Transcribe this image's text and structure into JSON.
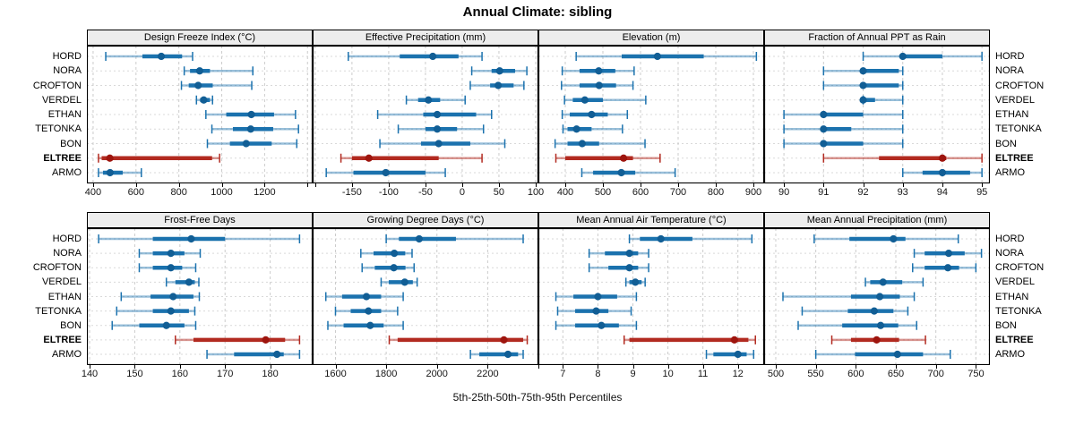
{
  "title": "Annual Climate: sibling",
  "footer": "5th-25th-50th-75th-95th Percentiles",
  "sites": [
    "HORD",
    "NORA",
    "CROFTON",
    "VERDEL",
    "ETHAN",
    "TETONKA",
    "BON",
    "ELTREE",
    "ARMO"
  ],
  "highlight_site": "ELTREE",
  "colors": {
    "normal": "#1b72ae",
    "normal_light": "rgba(27,114,174,0.45)",
    "normal_dot": "#115e95",
    "highlight": "#b22a20",
    "highlight_light": "rgba(178,42,32,0.5)",
    "highlight_dot": "#9e150e",
    "grid_vertical": "#cccccc",
    "grid_horizontal": "#d9d9d9",
    "strip_bg": "#ededed",
    "border": "#000000"
  },
  "chart_data": [
    {
      "type": "scatter",
      "style": "percentile-interval",
      "title": "Design Freeze Index (°C)",
      "xlim": [
        371,
        1424
      ],
      "ticks": [
        400,
        600,
        800,
        1000,
        1200
      ],
      "extra_ticks": [
        1400
      ],
      "percentiles": [
        "5th",
        "25th",
        "50th",
        "75th",
        "95th"
      ],
      "series": [
        {
          "site": "HORD",
          "values": [
            459,
            630,
            718,
            815,
            864
          ]
        },
        {
          "site": "NORA",
          "values": [
            825,
            852,
            897,
            945,
            1145
          ]
        },
        {
          "site": "CROFTON",
          "values": [
            812,
            846,
            890,
            958,
            1140
          ]
        },
        {
          "site": "VERDEL",
          "values": [
            882,
            899,
            916,
            945,
            957
          ]
        },
        {
          "site": "ETHAN",
          "values": [
            926,
            1021,
            1138,
            1244,
            1344
          ]
        },
        {
          "site": "TETONKA",
          "values": [
            954,
            1052,
            1135,
            1240,
            1358
          ]
        },
        {
          "site": "BON",
          "values": [
            933,
            1038,
            1114,
            1233,
            1350
          ]
        },
        {
          "site": "ELTREE",
          "values": [
            425,
            440,
            478,
            955,
            990
          ]
        },
        {
          "site": "ARMO",
          "values": [
            425,
            446,
            479,
            538,
            625
          ]
        }
      ]
    },
    {
      "type": "scatter",
      "style": "percentile-interval",
      "title": "Effective Precipitation (mm)",
      "xlim": [
        -203.5,
        103.7
      ],
      "ticks": [
        -150,
        -100,
        -50,
        0,
        50,
        100
      ],
      "extra_ticks": [
        -200
      ],
      "series": [
        {
          "site": "HORD",
          "values": [
            -155,
            -85,
            -40,
            -5,
            27
          ]
        },
        {
          "site": "NORA",
          "values": [
            13,
            40,
            51,
            72,
            88
          ]
        },
        {
          "site": "CROFTON",
          "values": [
            11,
            38,
            49,
            70,
            84
          ]
        },
        {
          "site": "VERDEL",
          "values": [
            -76,
            -60,
            -46,
            -30,
            4
          ]
        },
        {
          "site": "ETHAN",
          "values": [
            -115,
            -53,
            -34,
            19,
            40
          ]
        },
        {
          "site": "TETONKA",
          "values": [
            -87,
            -50,
            -34,
            -7,
            29
          ]
        },
        {
          "site": "BON",
          "values": [
            -112,
            -56,
            -32,
            11,
            58
          ]
        },
        {
          "site": "ELTREE",
          "values": [
            -165,
            -150,
            -127,
            -32,
            27
          ]
        },
        {
          "site": "ARMO",
          "values": [
            -185,
            -148,
            -104,
            -50,
            -23
          ]
        }
      ]
    },
    {
      "type": "scatter",
      "style": "percentile-interval",
      "title": "Elevation (m)",
      "xlim": [
        328.6,
        928.6
      ],
      "ticks": [
        400,
        500,
        600,
        700,
        800,
        900
      ],
      "extra_ticks": [],
      "series": [
        {
          "site": "HORD",
          "values": [
            429,
            550,
            645,
            768,
            908
          ]
        },
        {
          "site": "NORA",
          "values": [
            392,
            438,
            489,
            533,
            583
          ]
        },
        {
          "site": "CROFTON",
          "values": [
            390,
            438,
            490,
            535,
            580
          ]
        },
        {
          "site": "VERDEL",
          "values": [
            398,
            420,
            452,
            500,
            614
          ]
        },
        {
          "site": "ETHAN",
          "values": [
            392,
            412,
            470,
            513,
            565
          ]
        },
        {
          "site": "TETONKA",
          "values": [
            394,
            406,
            430,
            470,
            552
          ]
        },
        {
          "site": "BON",
          "values": [
            373,
            406,
            445,
            490,
            612
          ]
        },
        {
          "site": "ELTREE",
          "values": [
            375,
            400,
            555,
            580,
            652
          ]
        },
        {
          "site": "ARMO",
          "values": [
            444,
            474,
            549,
            586,
            692
          ]
        }
      ]
    },
    {
      "type": "scatter",
      "style": "percentile-interval",
      "title": "Fraction of Annual PPT as Rain",
      "xlim": [
        89.5,
        95.2
      ],
      "ticks": [
        90,
        91,
        92,
        93,
        94,
        95
      ],
      "extra_ticks": [],
      "series": [
        {
          "site": "HORD",
          "values": [
            92,
            93,
            93,
            94,
            95
          ]
        },
        {
          "site": "NORA",
          "values": [
            91,
            92,
            92,
            92.9,
            93
          ]
        },
        {
          "site": "CROFTON",
          "values": [
            91,
            92,
            92,
            92.9,
            93
          ]
        },
        {
          "site": "VERDEL",
          "values": [
            92,
            92,
            92,
            92.3,
            93
          ]
        },
        {
          "site": "ETHAN",
          "values": [
            90,
            91,
            91,
            92,
            93
          ]
        },
        {
          "site": "TETONKA",
          "values": [
            90,
            91,
            91,
            91.7,
            93
          ]
        },
        {
          "site": "BON",
          "values": [
            90,
            91,
            91,
            92,
            93
          ]
        },
        {
          "site": "ELTREE",
          "values": [
            91,
            92.4,
            94,
            94.1,
            95
          ]
        },
        {
          "site": "ARMO",
          "values": [
            93,
            93.5,
            94,
            94.7,
            95
          ]
        }
      ]
    },
    {
      "type": "scatter",
      "style": "percentile-interval",
      "title": "Frost-Free Days",
      "xlim": [
        139.4,
        189.4
      ],
      "ticks": [
        140,
        150,
        160,
        170,
        180
      ],
      "extra_ticks": [],
      "series": [
        {
          "site": "HORD",
          "values": [
            142,
            154,
            162.5,
            170,
            186.5
          ]
        },
        {
          "site": "NORA",
          "values": [
            151,
            154,
            158,
            161,
            164.5
          ]
        },
        {
          "site": "CROFTON",
          "values": [
            151,
            154,
            158,
            160.5,
            163.5
          ]
        },
        {
          "site": "VERDEL",
          "values": [
            157,
            159,
            162,
            163.3,
            164.2
          ]
        },
        {
          "site": "ETHAN",
          "values": [
            147,
            153.5,
            158.5,
            163,
            164.3
          ]
        },
        {
          "site": "TETONKA",
          "values": [
            146,
            154,
            158,
            162,
            163.3
          ]
        },
        {
          "site": "BON",
          "values": [
            145,
            151,
            157,
            161,
            163.5
          ]
        },
        {
          "site": "ELTREE",
          "values": [
            159,
            163,
            179,
            183.3,
            186.5
          ]
        },
        {
          "site": "ARMO",
          "values": [
            166,
            172,
            181.5,
            183,
            186.5
          ]
        }
      ]
    },
    {
      "type": "scatter",
      "style": "percentile-interval",
      "title": "Growing Degree Days (°C)",
      "xlim": [
        1510,
        2400
      ],
      "ticks": [
        1600,
        1800,
        2000,
        2200
      ],
      "extra_ticks": [
        2400
      ],
      "series": [
        {
          "site": "HORD",
          "values": [
            1800,
            1850,
            1930,
            2075,
            2340
          ]
        },
        {
          "site": "NORA",
          "values": [
            1700,
            1750,
            1832,
            1875,
            1902
          ]
        },
        {
          "site": "CROFTON",
          "values": [
            1705,
            1755,
            1830,
            1876,
            1910
          ]
        },
        {
          "site": "VERDEL",
          "values": [
            1780,
            1810,
            1873,
            1905,
            1922
          ]
        },
        {
          "site": "ETHAN",
          "values": [
            1562,
            1626,
            1722,
            1780,
            1867
          ]
        },
        {
          "site": "TETONKA",
          "values": [
            1600,
            1660,
            1730,
            1780,
            1845
          ]
        },
        {
          "site": "BON",
          "values": [
            1570,
            1632,
            1737,
            1790,
            1867
          ]
        },
        {
          "site": "ELTREE",
          "values": [
            1812,
            1845,
            2264,
            2340,
            2356
          ]
        },
        {
          "site": "ARMO",
          "values": [
            2132,
            2167,
            2280,
            2320,
            2340
          ]
        }
      ]
    },
    {
      "type": "scatter",
      "style": "percentile-interval",
      "title": "Mean Annual Air Temperature (°C)",
      "xlim": [
        6.3,
        12.75
      ],
      "ticks": [
        7,
        8,
        9,
        10,
        11,
        12
      ],
      "extra_ticks": [],
      "series": [
        {
          "site": "HORD",
          "values": [
            8.9,
            9.2,
            9.8,
            10.7,
            12.4
          ]
        },
        {
          "site": "NORA",
          "values": [
            7.75,
            8.2,
            8.9,
            9.15,
            9.45
          ]
        },
        {
          "site": "CROFTON",
          "values": [
            7.75,
            8.3,
            8.9,
            9.15,
            9.45
          ]
        },
        {
          "site": "VERDEL",
          "values": [
            8.8,
            8.9,
            9.07,
            9.25,
            9.35
          ]
        },
        {
          "site": "ETHAN",
          "values": [
            6.8,
            7.3,
            8.0,
            8.55,
            9.1
          ]
        },
        {
          "site": "TETONKA",
          "values": [
            6.85,
            7.35,
            7.95,
            8.3,
            8.95
          ]
        },
        {
          "site": "BON",
          "values": [
            6.8,
            7.35,
            8.1,
            8.6,
            9.1
          ]
        },
        {
          "site": "ELTREE",
          "values": [
            8.75,
            8.9,
            11.9,
            12.3,
            12.5
          ]
        },
        {
          "site": "ARMO",
          "values": [
            11.1,
            11.3,
            12.0,
            12.25,
            12.45
          ]
        }
      ]
    },
    {
      "type": "scatter",
      "style": "percentile-interval",
      "title": "Mean Annual Precipitation (mm)",
      "xlim": [
        485.5,
        767.5
      ],
      "ticks": [
        500,
        550,
        600,
        650,
        700,
        750
      ],
      "extra_ticks": [],
      "series": [
        {
          "site": "HORD",
          "values": [
            548,
            592,
            647,
            662,
            728
          ]
        },
        {
          "site": "NORA",
          "values": [
            673,
            686,
            716,
            736,
            757
          ]
        },
        {
          "site": "CROFTON",
          "values": [
            671,
            686,
            715,
            729,
            750
          ]
        },
        {
          "site": "VERDEL",
          "values": [
            612,
            618,
            634,
            658,
            684
          ]
        },
        {
          "site": "ETHAN",
          "values": [
            509,
            594,
            630,
            655,
            673
          ]
        },
        {
          "site": "TETONKA",
          "values": [
            533,
            590,
            623,
            647,
            665
          ]
        },
        {
          "site": "BON",
          "values": [
            528,
            583,
            631,
            653,
            676
          ]
        },
        {
          "site": "ELTREE",
          "values": [
            570,
            594,
            626,
            654,
            687
          ]
        },
        {
          "site": "ARMO",
          "values": [
            550,
            599,
            652,
            684,
            718
          ]
        }
      ]
    }
  ]
}
